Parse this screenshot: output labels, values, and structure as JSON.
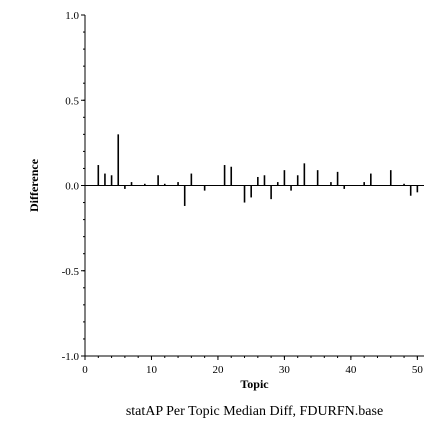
{
  "chart_data": {
    "type": "bar",
    "xlabel": "Topic",
    "ylabel": "Difference",
    "caption": "statAP Per Topic Median Diff, FDURFN.base",
    "xlim": [
      0,
      51
    ],
    "ylim": [
      -1.0,
      1.0
    ],
    "x_ticks": [
      0,
      10,
      20,
      30,
      40,
      50
    ],
    "x_tick_labels": [
      "0",
      "10",
      "20",
      "30",
      "40",
      "50"
    ],
    "y_ticks": [
      1.0,
      0.5,
      0.0,
      -0.5,
      -1.0
    ],
    "y_tick_labels": [
      "1.0",
      "0.5",
      "0.0",
      "-0.5",
      "-1.0"
    ],
    "grid": false,
    "x": [
      1,
      2,
      3,
      4,
      5,
      6,
      7,
      8,
      9,
      10,
      11,
      12,
      13,
      14,
      15,
      16,
      17,
      18,
      19,
      20,
      21,
      22,
      23,
      24,
      25,
      26,
      27,
      28,
      29,
      30,
      31,
      32,
      33,
      34,
      35,
      36,
      37,
      38,
      39,
      40,
      41,
      42,
      43,
      44,
      45,
      46,
      47,
      48,
      49,
      50
    ],
    "values": [
      0.0,
      0.12,
      0.07,
      0.06,
      0.3,
      -0.02,
      0.02,
      0.0,
      0.01,
      0.0,
      0.06,
      0.01,
      0.0,
      0.02,
      -0.12,
      0.07,
      0.0,
      -0.03,
      0.0,
      0.0,
      0.12,
      0.11,
      0.0,
      -0.1,
      -0.07,
      0.05,
      0.06,
      -0.08,
      0.02,
      0.09,
      -0.03,
      0.06,
      0.13,
      0.0,
      0.09,
      0.0,
      0.02,
      0.08,
      -0.02,
      0.0,
      0.0,
      0.02,
      0.07,
      0.0,
      0.0,
      0.09,
      0.0,
      0.01,
      -0.06,
      -0.04
    ]
  }
}
